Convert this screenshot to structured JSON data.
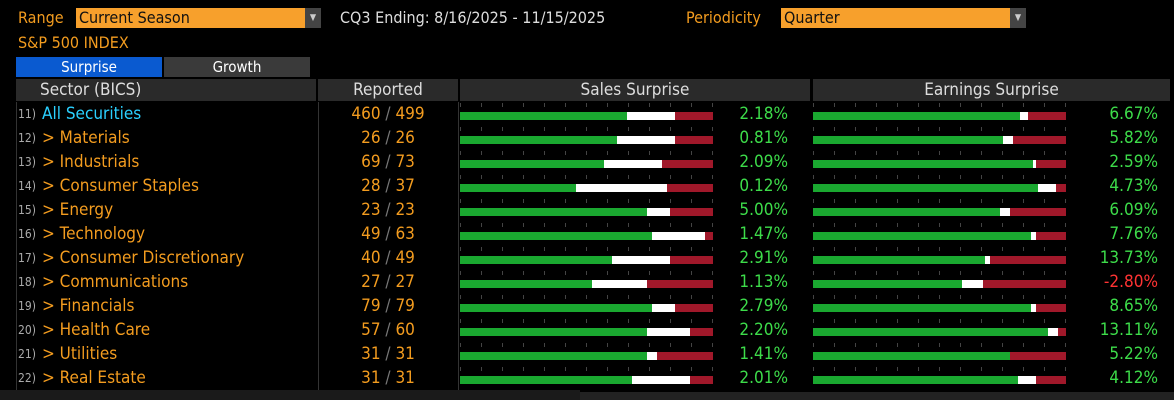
{
  "header": {
    "range_label": "Range",
    "range_value": "Current Season",
    "period_text": "CQ3 Ending: 8/16/2025 - 11/15/2025",
    "periodicity_label": "Periodicity",
    "periodicity_value": "Quarter",
    "index_title": "S&P 500 INDEX"
  },
  "tabs": [
    {
      "label": "Surprise",
      "active": true
    },
    {
      "label": "Growth",
      "active": false
    }
  ],
  "columns": {
    "sector": "Sector (BICS)",
    "reported": "Reported",
    "sales": "Sales Surprise",
    "earnings": "Earnings Surprise"
  },
  "colors": {
    "beat": "#1aa830",
    "inline": "#ffffff",
    "miss": "#a0182a",
    "positive": "#3ddc4a",
    "negative": "#ff3333",
    "accent": "#f39c1f",
    "link": "#2ad0ff"
  },
  "rows": [
    {
      "num": "11)",
      "name": "All Securities",
      "reported": "460",
      "total": "499",
      "sales": "2.18%",
      "earnings": "6.67%",
      "sales_bar": [
        0.66,
        0.19,
        0.15
      ],
      "earn_bar": [
        0.82,
        0.03,
        0.15
      ]
    },
    {
      "num": "12)",
      "name": "> Materials",
      "reported": "26",
      "total": "26",
      "sales": "0.81%",
      "earnings": "5.82%",
      "sales_bar": [
        0.62,
        0.23,
        0.15
      ],
      "earn_bar": [
        0.75,
        0.04,
        0.21
      ]
    },
    {
      "num": "13)",
      "name": "> Industrials",
      "reported": "69",
      "total": "73",
      "sales": "2.09%",
      "earnings": "2.59%",
      "sales_bar": [
        0.57,
        0.23,
        0.2
      ],
      "earn_bar": [
        0.87,
        0.01,
        0.12
      ]
    },
    {
      "num": "14)",
      "name": "> Consumer Staples",
      "reported": "28",
      "total": "37",
      "sales": "0.12%",
      "earnings": "4.73%",
      "sales_bar": [
        0.46,
        0.36,
        0.18
      ],
      "earn_bar": [
        0.89,
        0.07,
        0.04
      ]
    },
    {
      "num": "15)",
      "name": "> Energy",
      "reported": "23",
      "total": "23",
      "sales": "5.00%",
      "earnings": "6.09%",
      "sales_bar": [
        0.74,
        0.09,
        0.17
      ],
      "earn_bar": [
        0.74,
        0.04,
        0.22
      ]
    },
    {
      "num": "16)",
      "name": "> Technology",
      "reported": "49",
      "total": "63",
      "sales": "1.47%",
      "earnings": "7.76%",
      "sales_bar": [
        0.76,
        0.21,
        0.03
      ],
      "earn_bar": [
        0.86,
        0.02,
        0.12
      ]
    },
    {
      "num": "17)",
      "name": "> Consumer Discretionary",
      "reported": "40",
      "total": "49",
      "sales": "2.91%",
      "earnings": "13.73%",
      "sales_bar": [
        0.6,
        0.23,
        0.17
      ],
      "earn_bar": [
        0.68,
        0.02,
        0.3
      ]
    },
    {
      "num": "18)",
      "name": "> Communications",
      "reported": "27",
      "total": "27",
      "sales": "1.13%",
      "earnings": "-2.80%",
      "sales_bar": [
        0.52,
        0.22,
        0.26
      ],
      "earn_bar": [
        0.59,
        0.08,
        0.33
      ]
    },
    {
      "num": "19)",
      "name": "> Financials",
      "reported": "79",
      "total": "79",
      "sales": "2.79%",
      "earnings": "8.65%",
      "sales_bar": [
        0.76,
        0.09,
        0.15
      ],
      "earn_bar": [
        0.86,
        0.02,
        0.12
      ]
    },
    {
      "num": "20)",
      "name": "> Health Care",
      "reported": "57",
      "total": "60",
      "sales": "2.20%",
      "earnings": "13.11%",
      "sales_bar": [
        0.74,
        0.17,
        0.09
      ],
      "earn_bar": [
        0.93,
        0.04,
        0.03
      ]
    },
    {
      "num": "21)",
      "name": "> Utilities",
      "reported": "31",
      "total": "31",
      "sales": "1.41%",
      "earnings": "5.22%",
      "sales_bar": [
        0.74,
        0.04,
        0.22
      ],
      "earn_bar": [
        0.78,
        0.0,
        0.22
      ]
    },
    {
      "num": "22)",
      "name": "> Real Estate",
      "reported": "31",
      "total": "31",
      "sales": "2.01%",
      "earnings": "4.12%",
      "sales_bar": [
        0.68,
        0.23,
        0.09
      ],
      "earn_bar": [
        0.81,
        0.07,
        0.12
      ]
    }
  ]
}
